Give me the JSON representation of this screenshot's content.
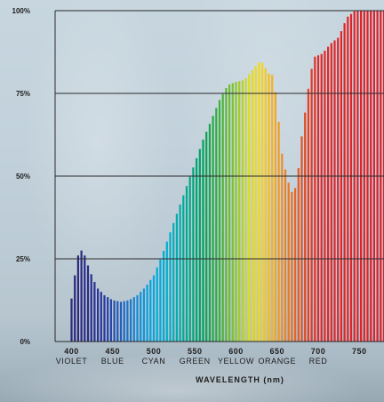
{
  "chart_data": {
    "type": "bar",
    "xlabel": "WAVELENGTH (nm)",
    "ylabel": "",
    "xlim": [
      380,
      780
    ],
    "ylim": [
      0,
      100
    ],
    "grid": true,
    "y_ticks": [
      {
        "value": 0,
        "label": "0%"
      },
      {
        "value": 25,
        "label": "25%"
      },
      {
        "value": 50,
        "label": "50%"
      },
      {
        "value": 75,
        "label": "75%"
      },
      {
        "value": 100,
        "label": "100%"
      }
    ],
    "x_ticks": [
      {
        "value": 400,
        "label": "400",
        "name": "VIOLET"
      },
      {
        "value": 450,
        "label": "450",
        "name": "BLUE"
      },
      {
        "value": 500,
        "label": "500",
        "name": "CYAN"
      },
      {
        "value": 550,
        "label": "550",
        "name": "GREEN"
      },
      {
        "value": 600,
        "label": "600",
        "name": "YELLOW"
      },
      {
        "value": 650,
        "label": "650",
        "name": "ORANGE"
      },
      {
        "value": 700,
        "label": "700",
        "name": "RED"
      },
      {
        "value": 750,
        "label": "750",
        "name": ""
      }
    ],
    "curve": [
      [
        396,
        0
      ],
      [
        400,
        13
      ],
      [
        404,
        20
      ],
      [
        408,
        26
      ],
      [
        412,
        27.5
      ],
      [
        416,
        26
      ],
      [
        420,
        23
      ],
      [
        426,
        19
      ],
      [
        432,
        16
      ],
      [
        440,
        14
      ],
      [
        450,
        12.5
      ],
      [
        460,
        12
      ],
      [
        470,
        12.5
      ],
      [
        480,
        14
      ],
      [
        490,
        16.5
      ],
      [
        500,
        20
      ],
      [
        510,
        26
      ],
      [
        520,
        33
      ],
      [
        530,
        40
      ],
      [
        540,
        47
      ],
      [
        550,
        54
      ],
      [
        560,
        61
      ],
      [
        570,
        67
      ],
      [
        580,
        73
      ],
      [
        590,
        77.5
      ],
      [
        600,
        78.5
      ],
      [
        610,
        79
      ],
      [
        620,
        82
      ],
      [
        630,
        85
      ],
      [
        640,
        81
      ],
      [
        645,
        80.5
      ],
      [
        650,
        72
      ],
      [
        655,
        58
      ],
      [
        660,
        52
      ],
      [
        665,
        47
      ],
      [
        670,
        44
      ],
      [
        675,
        50
      ],
      [
        680,
        62
      ],
      [
        690,
        80
      ],
      [
        695,
        86
      ],
      [
        705,
        87
      ],
      [
        715,
        90
      ],
      [
        725,
        92
      ],
      [
        735,
        98
      ],
      [
        745,
        100
      ],
      [
        780,
        100
      ]
    ]
  }
}
